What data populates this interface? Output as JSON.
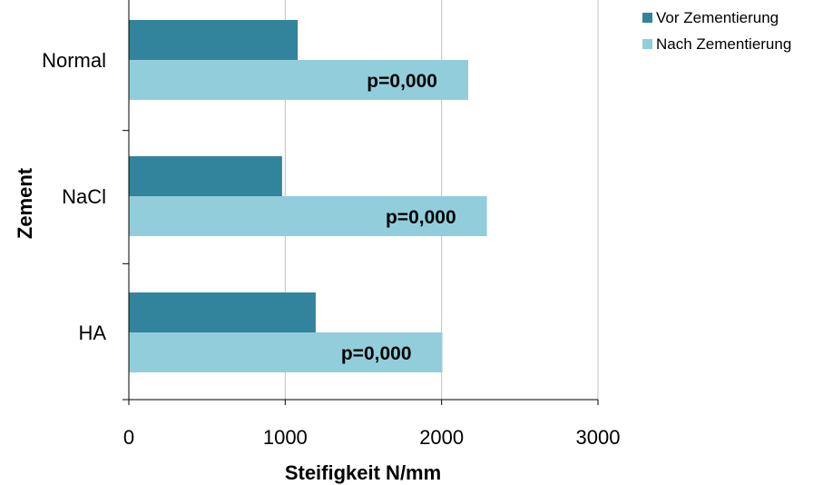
{
  "chart_data": {
    "type": "bar",
    "orientation": "horizontal",
    "categories": [
      "Normal",
      "NaCl",
      "HA"
    ],
    "series": [
      {
        "name": "Vor Zementierung",
        "color": "#31849b",
        "values": [
          1080,
          980,
          1195
        ]
      },
      {
        "name": "Nach Zementierung",
        "color": "#92cddc",
        "values": [
          2170,
          2290,
          2005
        ]
      }
    ],
    "annotations": [
      "p=0,000",
      "p=0,000",
      "p=0,000"
    ],
    "xlabel": "Steifigkeit N/mm",
    "ylabel": "Zement",
    "xlim": [
      0,
      3000
    ],
    "xticks": [
      "0",
      "1000",
      "2000",
      "3000"
    ],
    "grid": true,
    "legend_position": "top-right"
  }
}
